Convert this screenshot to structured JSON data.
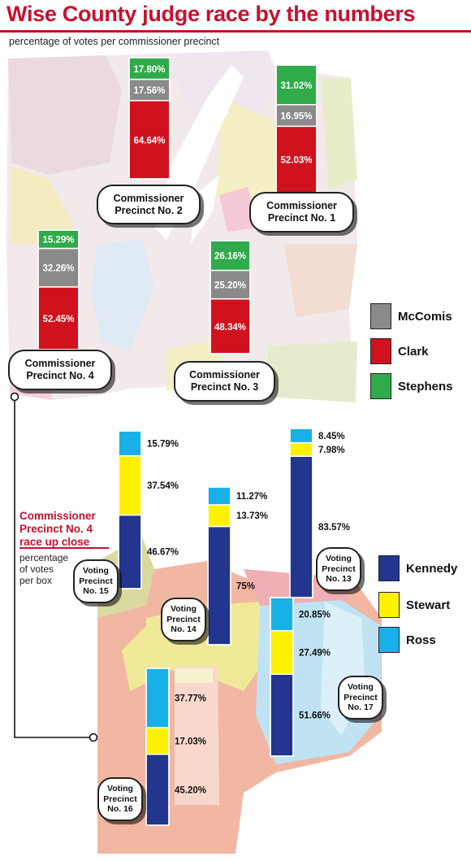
{
  "header": {
    "title": "Wise County judge race by the numbers",
    "subtitle": "percentage of votes per commissioner precinct"
  },
  "legend_top": [
    {
      "label": "McComis",
      "color": "#8a8a8a"
    },
    {
      "label": "Clark",
      "color": "#d0121e"
    },
    {
      "label": "Stephens",
      "color": "#2fab4a"
    }
  ],
  "legend_bottom": [
    {
      "label": "Kennedy",
      "color": "#22358f"
    },
    {
      "label": "Stewart",
      "color": "#fff200"
    },
    {
      "label": "Ross",
      "color": "#17b0e8"
    }
  ],
  "inset": {
    "title_line1": "Commissioner",
    "title_line2": "Precinct No. 4",
    "title_line3": "race up close",
    "subtitle_line1": "percentage",
    "subtitle_line2": "of votes",
    "subtitle_line3": "per box"
  },
  "chart_data": [
    {
      "type": "bar",
      "title": "Wise County judge race by the numbers",
      "subtitle": "percentage of votes per commissioner precinct",
      "stacked": true,
      "series": [
        {
          "name": "Clark",
          "color": "#d0121e"
        },
        {
          "name": "McComis",
          "color": "#8a8a8a"
        },
        {
          "name": "Stephens",
          "color": "#2fab4a"
        }
      ],
      "categories": [
        {
          "label_line1": "Commissioner",
          "label_line2": "Precinct No. 2",
          "values": {
            "Clark": 64.64,
            "McComis": 17.56,
            "Stephens": 17.8
          },
          "labels": {
            "Clark": "64.64%",
            "McComis": "17.56%",
            "Stephens": "17.80%"
          }
        },
        {
          "label_line1": "Commissioner",
          "label_line2": "Precinct No. 1",
          "values": {
            "Clark": 52.03,
            "McComis": 16.95,
            "Stephens": 31.02
          },
          "labels": {
            "Clark": "52.03%",
            "McComis": "16.95%",
            "Stephens": "31.02%"
          }
        },
        {
          "label_line1": "Commissioner",
          "label_line2": "Precinct No. 4",
          "values": {
            "Clark": 52.45,
            "McComis": 32.26,
            "Stephens": 15.29
          },
          "labels": {
            "Clark": "52.45%",
            "McComis": "32.26%",
            "Stephens": "15.29%"
          }
        },
        {
          "label_line1": "Commissioner",
          "label_line2": "Precinct No. 3",
          "values": {
            "Clark": 48.34,
            "McComis": 25.2,
            "Stephens": 26.16
          },
          "labels": {
            "Clark": "48.34%",
            "McComis": "25.20%",
            "Stephens": "26.16%"
          }
        }
      ]
    },
    {
      "type": "bar",
      "title": "Commissioner Precinct No. 4 race up close",
      "subtitle": "percentage of votes per box",
      "stacked": true,
      "series": [
        {
          "name": "Kennedy",
          "color": "#22358f"
        },
        {
          "name": "Stewart",
          "color": "#fff200"
        },
        {
          "name": "Ross",
          "color": "#17b0e8"
        }
      ],
      "categories": [
        {
          "label_line1": "Voting",
          "label_line2": "Precinct",
          "label_line3": "No. 15",
          "values": {
            "Kennedy": 46.67,
            "Stewart": 37.54,
            "Ross": 15.79
          },
          "labels": {
            "Kennedy": "46.67%",
            "Stewart": "37.54%",
            "Ross": "15.79%"
          }
        },
        {
          "label_line1": "Voting",
          "label_line2": "Precinct",
          "label_line3": "No. 14",
          "values": {
            "Kennedy": 75,
            "Stewart": 13.73,
            "Ross": 11.27
          },
          "labels": {
            "Kennedy": "75%",
            "Stewart": "13.73%",
            "Ross": "11.27%"
          }
        },
        {
          "label_line1": "Voting",
          "label_line2": "Precinct",
          "label_line3": "No. 13",
          "values": {
            "Kennedy": 83.57,
            "Stewart": 7.98,
            "Ross": 8.45
          },
          "labels": {
            "Kennedy": "83.57%",
            "Stewart": "7.98%",
            "Ross": "8.45%"
          }
        },
        {
          "label_line1": "Voting",
          "label_line2": "Precinct",
          "label_line3": "No. 17",
          "values": {
            "Kennedy": 51.66,
            "Stewart": 27.49,
            "Ross": 20.85
          },
          "labels": {
            "Kennedy": "51.66%",
            "Stewart": "27.49%",
            "Ross": "20.85%"
          }
        },
        {
          "label_line1": "Voting",
          "label_line2": "Precinct",
          "label_line3": "No. 16",
          "values": {
            "Kennedy": 45.2,
            "Stewart": 17.03,
            "Ross": 37.77
          },
          "labels": {
            "Kennedy": "45.20%",
            "Stewart": "17.03%",
            "Ross": "37.77%"
          }
        }
      ]
    }
  ]
}
